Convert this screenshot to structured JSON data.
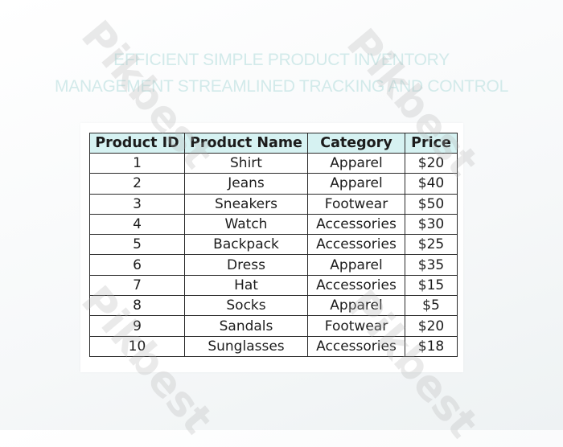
{
  "title_line1": "EFFICIENT SIMPLE PRODUCT INVENTORY",
  "title_line2": "MANAGEMENT STREAMLINED TRACKING AND CONTROL",
  "watermark": "Pikbest",
  "table": {
    "headers": [
      "Product ID",
      "Product Name",
      "Category",
      "Price"
    ],
    "rows": [
      [
        "1",
        "Shirt",
        "Apparel",
        "$20"
      ],
      [
        "2",
        "Jeans",
        "Apparel",
        "$40"
      ],
      [
        "3",
        "Sneakers",
        "Footwear",
        "$50"
      ],
      [
        "4",
        "Watch",
        "Accessories",
        "$30"
      ],
      [
        "5",
        "Backpack",
        "Accessories",
        "$25"
      ],
      [
        "6",
        "Dress",
        "Apparel",
        "$35"
      ],
      [
        "7",
        "Hat",
        "Accessories",
        "$15"
      ],
      [
        "8",
        "Socks",
        "Apparel",
        "$5"
      ],
      [
        "9",
        "Sandals",
        "Footwear",
        "$20"
      ],
      [
        "10",
        "Sunglasses",
        "Accessories",
        "$18"
      ]
    ]
  },
  "colors": {
    "header_bg": "#d6f2f2",
    "title": "#d2eaea",
    "border": "#2a2a2a"
  }
}
